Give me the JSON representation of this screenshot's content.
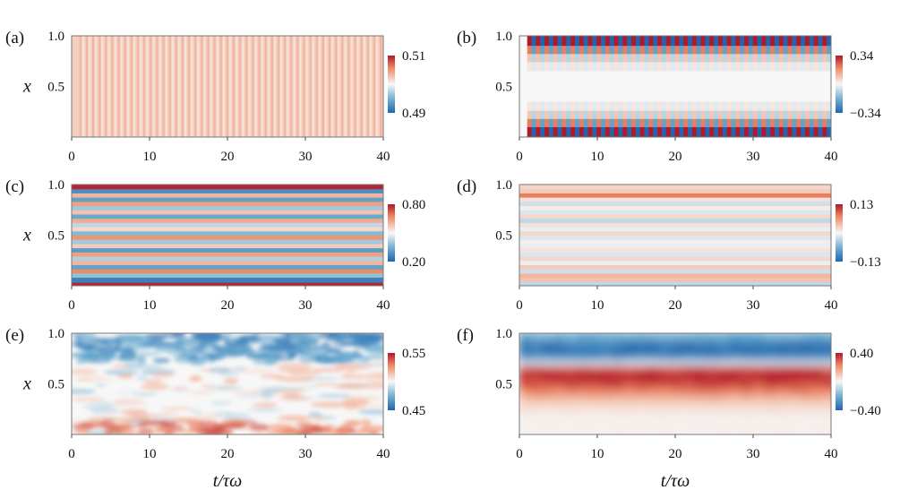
{
  "chart_data": [
    {
      "panel": "a",
      "label": "(a)",
      "type": "heatmap",
      "pattern": "vertical_stripes",
      "x_range": [
        0,
        40
      ],
      "y_range": [
        0,
        1
      ],
      "x_ticks": [
        "0",
        "10",
        "20",
        "30",
        "40"
      ],
      "y_ticks": [
        "1.0",
        "0.5"
      ],
      "ylabel": "x",
      "xlabel": "",
      "colorbar": {
        "max": "0.51",
        "min": "0.49"
      }
    },
    {
      "panel": "b",
      "label": "(b)",
      "type": "heatmap",
      "pattern": "vertical_stripes_edges",
      "x_range": [
        0,
        40
      ],
      "y_range": [
        0,
        1
      ],
      "x_ticks": [
        "0",
        "10",
        "20",
        "30",
        "40"
      ],
      "y_ticks": [
        "1.0",
        "0.5"
      ],
      "ylabel": "",
      "xlabel": "",
      "colorbar": {
        "max": "0.34",
        "min": "−0.34"
      }
    },
    {
      "panel": "c",
      "label": "(c)",
      "type": "heatmap",
      "pattern": "horizontal_bands",
      "x_range": [
        0,
        40
      ],
      "y_range": [
        0,
        1
      ],
      "x_ticks": [
        "0",
        "10",
        "20",
        "30",
        "40"
      ],
      "y_ticks": [
        "1.0",
        "0.5"
      ],
      "ylabel": "x",
      "xlabel": "",
      "colorbar": {
        "max": "0.80",
        "min": "0.20"
      }
    },
    {
      "panel": "d",
      "label": "(d)",
      "type": "heatmap",
      "pattern": "horizontal_bands_weak",
      "x_range": [
        0,
        40
      ],
      "y_range": [
        0,
        1
      ],
      "x_ticks": [
        "0",
        "10",
        "20",
        "30",
        "40"
      ],
      "y_ticks": [
        "1.0",
        "0.5"
      ],
      "ylabel": "",
      "xlabel": "",
      "colorbar": {
        "max": "0.13",
        "min": "−0.13"
      }
    },
    {
      "panel": "e",
      "label": "(e)",
      "type": "heatmap",
      "pattern": "turbulent",
      "x_range": [
        0,
        40
      ],
      "y_range": [
        0,
        1
      ],
      "x_ticks": [
        "0",
        "10",
        "20",
        "30",
        "40"
      ],
      "y_ticks": [
        "1.0",
        "0.5"
      ],
      "ylabel": "x",
      "xlabel": "t/τω",
      "colorbar": {
        "max": "0.55",
        "min": "0.45"
      }
    },
    {
      "panel": "f",
      "label": "(f)",
      "type": "heatmap",
      "pattern": "two_layers",
      "x_range": [
        0,
        40
      ],
      "y_range": [
        0,
        1
      ],
      "x_ticks": [
        "0",
        "10",
        "20",
        "30",
        "40"
      ],
      "y_ticks": [
        "1.0",
        "0.5"
      ],
      "ylabel": "",
      "xlabel": "t/τω",
      "colorbar": {
        "max": "0.40",
        "min": "−0.40"
      }
    }
  ],
  "colors": {
    "negative": "#2166ac",
    "neutral": "#f7f7f7",
    "positive": "#b2182b"
  }
}
